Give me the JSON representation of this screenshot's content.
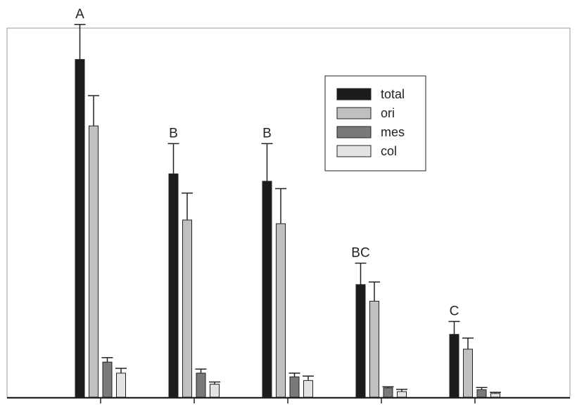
{
  "chart_data": {
    "type": "bar",
    "title": "",
    "xlabel": "",
    "ylabel": "",
    "ylim": [
      0,
      100
    ],
    "categories": [
      "",
      "",
      "",
      "",
      ""
    ],
    "group_letters": [
      "A",
      "B",
      "B",
      "BC",
      "C"
    ],
    "series": [
      {
        "name": "total",
        "color": "#1c1c1c",
        "values": [
          91.5,
          60.5,
          58.5,
          30.5,
          17.0
        ],
        "errors": [
          9.5,
          8.2,
          10.2,
          5.8,
          3.5
        ]
      },
      {
        "name": "ori",
        "color": "#c0c0c0",
        "values": [
          73.5,
          48.0,
          47.0,
          26.0,
          13.0
        ],
        "errors": [
          8.2,
          7.3,
          9.5,
          5.2,
          3.0
        ]
      },
      {
        "name": "mes",
        "color": "#7a7a7a",
        "values": [
          9.5,
          6.5,
          5.5,
          2.5,
          2.0
        ],
        "errors": [
          1.2,
          1.1,
          1.0,
          0.3,
          0.6
        ]
      },
      {
        "name": "col",
        "color": "#e3e3e3",
        "values": [
          6.5,
          3.5,
          4.5,
          1.5,
          1.0
        ],
        "errors": [
          1.3,
          0.6,
          1.2,
          0.6,
          0.3
        ]
      }
    ],
    "legend_position": "top-right",
    "grid": false
  }
}
